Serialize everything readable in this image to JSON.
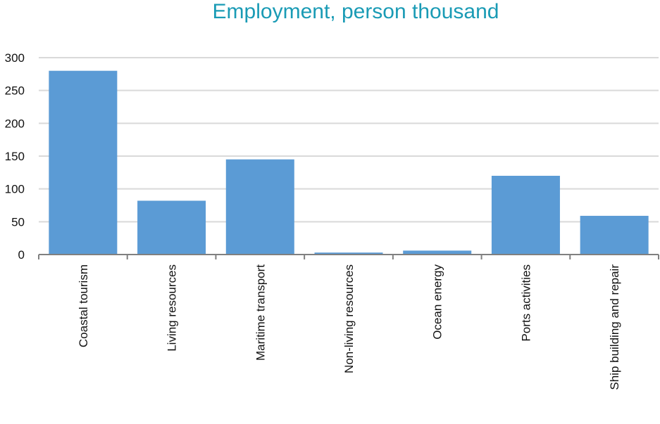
{
  "chart_data": {
    "type": "bar",
    "title": "Employment, person thousand",
    "xlabel": "",
    "ylabel": "",
    "categories": [
      "Coastal tourism",
      "Living resources",
      "Maritime transport",
      "Non-living resources",
      "Ocean energy",
      "Ports activities",
      "Ship building and repair"
    ],
    "values": [
      280,
      82,
      145,
      3,
      6,
      120,
      59
    ],
    "ylim": [
      0,
      300
    ],
    "yticks": [
      "0",
      "50",
      "100",
      "150",
      "200",
      "250",
      "300"
    ],
    "grid": true,
    "bar_color": "#5b9bd5",
    "grid_color": "#d9d9d9",
    "title_color": "#1a9bb5"
  }
}
